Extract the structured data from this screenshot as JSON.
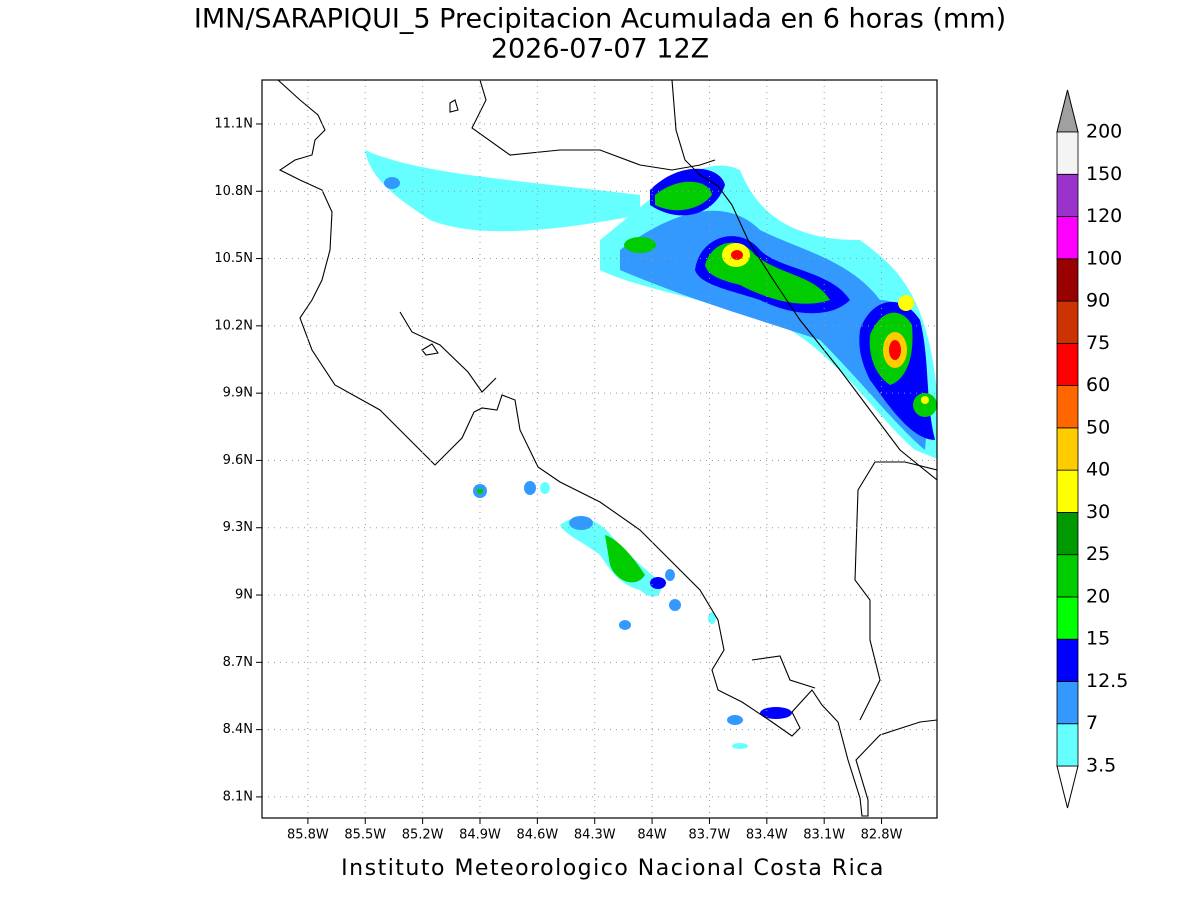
{
  "title": "IMN/SARAPIQUI_5 Precipitacion Acumulada en 6 horas (mm)",
  "subtitle": "2026-07-07 12Z",
  "footer": "Instituto Meteorologico Nacional Costa Rica",
  "map": {
    "lon_range": [
      -86.04,
      -82.51
    ],
    "lat_range": [
      8.006,
      11.296
    ],
    "grid": true,
    "lon_ticks": [
      {
        "value": -85.8,
        "label": "85.8W"
      },
      {
        "value": -85.5,
        "label": "85.5W"
      },
      {
        "value": -85.2,
        "label": "85.2W"
      },
      {
        "value": -84.9,
        "label": "84.9W"
      },
      {
        "value": -84.6,
        "label": "84.6W"
      },
      {
        "value": -84.3,
        "label": "84.3W"
      },
      {
        "value": -84.0,
        "label": "84W"
      },
      {
        "value": -83.7,
        "label": "83.7W"
      },
      {
        "value": -83.4,
        "label": "83.4W"
      },
      {
        "value": -83.1,
        "label": "83.1W"
      },
      {
        "value": -82.8,
        "label": "82.8W"
      }
    ],
    "lat_ticks": [
      {
        "value": 8.1,
        "label": "8.1N"
      },
      {
        "value": 8.4,
        "label": "8.4N"
      },
      {
        "value": 8.7,
        "label": "8.7N"
      },
      {
        "value": 9.0,
        "label": "9N"
      },
      {
        "value": 9.3,
        "label": "9.3N"
      },
      {
        "value": 9.6,
        "label": "9.6N"
      },
      {
        "value": 9.9,
        "label": "9.9N"
      },
      {
        "value": 10.2,
        "label": "10.2N"
      },
      {
        "value": 10.5,
        "label": "10.5N"
      },
      {
        "value": 10.8,
        "label": "10.8N"
      },
      {
        "value": 11.1,
        "label": "11.1N"
      }
    ]
  },
  "colorbar": {
    "levels": [
      3.5,
      7,
      12.5,
      15,
      20,
      25,
      30,
      40,
      50,
      60,
      75,
      90,
      100,
      120,
      150,
      200
    ],
    "colors": [
      "#66ffff",
      "#3399ff",
      "#0000ff",
      "#00ff00",
      "#00cc00",
      "#009900",
      "#ffff00",
      "#ffcc00",
      "#ff6600",
      "#ff0000",
      "#cc3300",
      "#990000",
      "#ff00ff",
      "#9933cc",
      "#f4f4f4"
    ],
    "under_color": "#ffffff",
    "over_color": "#a0a0a0"
  }
}
